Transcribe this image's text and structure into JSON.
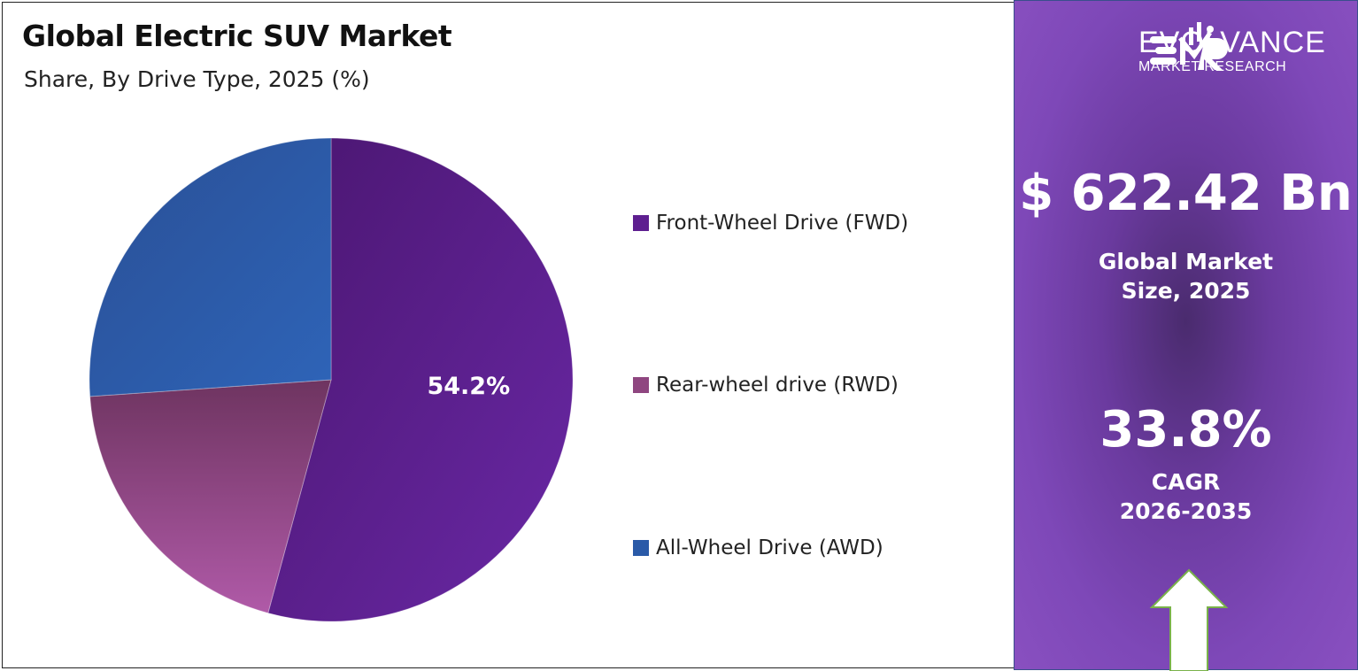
{
  "chart_data": {
    "type": "pie",
    "title": "Global Electric SUV Market",
    "subtitle": "Share, By Drive Type, 2025 (%)",
    "legend_position": "right",
    "slices": [
      {
        "name": "Front-Wheel Drive (FWD)",
        "value": 54.2,
        "label": "54.2%",
        "color": "#5e1f90"
      },
      {
        "name": "Rear-wheel drive (RWD)",
        "value": 19.7,
        "label": "",
        "color": "#8f4680"
      },
      {
        "name": "All-Wheel Drive (AWD)",
        "value": 26.1,
        "label": "",
        "color": "#2a5aa8"
      }
    ]
  },
  "sidebar": {
    "logo_text": "EVOLVANCE",
    "logo_subtext": "MARKET RESEARCH",
    "logo_mark": "EMR",
    "market_value": "$ 622.42 Bn",
    "market_label_line1": "Global Market",
    "market_label_line2": "Size, 2025",
    "cagr_value": "33.8%",
    "cagr_label_line1": "CAGR",
    "cagr_label_line2": "2026-2035",
    "arrow_icon": "up-arrow-icon"
  }
}
